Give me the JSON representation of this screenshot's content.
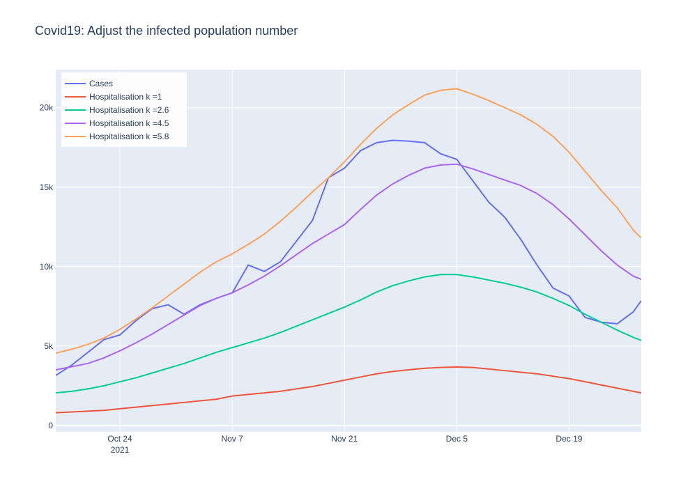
{
  "chart_data": {
    "type": "line",
    "title": "Covid19: Adjust the infected population number",
    "x": [
      "2021-10-16",
      "2021-10-18",
      "2021-10-20",
      "2021-10-22",
      "2021-10-24",
      "2021-10-26",
      "2021-10-28",
      "2021-10-30",
      "2021-11-01",
      "2021-11-03",
      "2021-11-05",
      "2021-11-07",
      "2021-11-09",
      "2021-11-11",
      "2021-11-13",
      "2021-11-15",
      "2021-11-17",
      "2021-11-19",
      "2021-11-21",
      "2021-11-23",
      "2021-11-25",
      "2021-11-27",
      "2021-11-29",
      "2021-12-01",
      "2021-12-03",
      "2021-12-05",
      "2021-12-07",
      "2021-12-09",
      "2021-12-11",
      "2021-12-13",
      "2021-12-15",
      "2021-12-17",
      "2021-12-19",
      "2021-12-21",
      "2021-12-23",
      "2021-12-25",
      "2021-12-27",
      "2021-12-28"
    ],
    "series": [
      {
        "name": "Cases",
        "color": "#636efa",
        "values": [
          3150,
          3800,
          4600,
          5400,
          5700,
          6600,
          7350,
          7600,
          7000,
          7600,
          8000,
          8350,
          10100,
          9700,
          10300,
          11600,
          12900,
          15600,
          16200,
          17300,
          17800,
          17950,
          17900,
          17800,
          17100,
          16750,
          15400,
          14050,
          13100,
          11700,
          10100,
          8650,
          8150,
          6800,
          6500,
          6400,
          7150,
          7850
        ]
      },
      {
        "name": "Hospitalisation k =1",
        "color": "#ef553b",
        "values": [
          800,
          850,
          900,
          950,
          1050,
          1150,
          1250,
          1350,
          1450,
          1550,
          1650,
          1850,
          1950,
          2050,
          2150,
          2300,
          2450,
          2650,
          2850,
          3050,
          3250,
          3400,
          3500,
          3600,
          3650,
          3680,
          3650,
          3550,
          3450,
          3350,
          3250,
          3100,
          2950,
          2750,
          2550,
          2350,
          2150,
          2050
        ]
      },
      {
        "name": "Hospitalisation k =2.6",
        "color": "#00cc96",
        "values": [
          2050,
          2150,
          2300,
          2500,
          2750,
          3000,
          3300,
          3600,
          3900,
          4250,
          4600,
          4900,
          5200,
          5500,
          5850,
          6250,
          6650,
          7050,
          7450,
          7900,
          8400,
          8800,
          9100,
          9350,
          9500,
          9500,
          9350,
          9150,
          8950,
          8700,
          8400,
          8000,
          7550,
          7000,
          6500,
          6000,
          5550,
          5350
        ]
      },
      {
        "name": "Hospitalisation k =4.5",
        "color": "#ab63fa",
        "values": [
          3500,
          3700,
          3900,
          4250,
          4700,
          5200,
          5750,
          6350,
          6950,
          7550,
          8000,
          8350,
          8850,
          9400,
          10050,
          10750,
          11450,
          12050,
          12650,
          13600,
          14500,
          15200,
          15750,
          16200,
          16400,
          16450,
          16150,
          15800,
          15450,
          15100,
          14600,
          13900,
          13000,
          12000,
          11000,
          10100,
          9400,
          9200
        ]
      },
      {
        "name": "Hospitalisation k =5.8",
        "color": "#ffa15a",
        "values": [
          4550,
          4800,
          5100,
          5500,
          6050,
          6700,
          7400,
          8150,
          8900,
          9650,
          10300,
          10800,
          11400,
          12050,
          12850,
          13750,
          14700,
          15600,
          16600,
          17700,
          18700,
          19550,
          20200,
          20800,
          21100,
          21200,
          20850,
          20450,
          20000,
          19550,
          18950,
          18200,
          17200,
          16000,
          14800,
          13700,
          12300,
          11800
        ]
      }
    ],
    "xlim": [
      "2021-10-16",
      "2021-12-28"
    ],
    "xticks": [
      {
        "value": "2021-10-24",
        "label": "Oct 24"
      },
      {
        "value": "2021-11-07",
        "label": "Nov 7"
      },
      {
        "value": "2021-11-21",
        "label": "Nov 21"
      },
      {
        "value": "2021-12-05",
        "label": "Dec 5"
      },
      {
        "value": "2021-12-19",
        "label": "Dec 19"
      }
    ],
    "x_year_label": "2021",
    "ylim": [
      -400,
      22400
    ],
    "yticks": [
      0,
      {
        "value": 5000,
        "label": "5k"
      },
      {
        "value": 10000,
        "label": "10k"
      },
      {
        "value": 15000,
        "label": "15k"
      },
      {
        "value": 20000,
        "label": "20k"
      }
    ],
    "grid": true,
    "legend_position": "top-left"
  }
}
